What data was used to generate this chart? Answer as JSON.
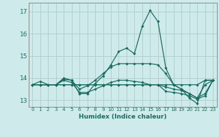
{
  "xlabel": "Humidex (Indice chaleur)",
  "bg_color": "#ceeaea",
  "grid_color": "#b0d0d0",
  "line_color": "#1a6b60",
  "xlim": [
    -0.5,
    23.5
  ],
  "ylim": [
    12.7,
    17.4
  ],
  "yticks": [
    13,
    14,
    15,
    16,
    17
  ],
  "xtick_labels": [
    "0",
    "1",
    "2",
    "3",
    "4",
    "5",
    "6",
    "7",
    "8",
    "9",
    "10",
    "11",
    "12",
    "13",
    "14",
    "15",
    "16",
    "17",
    "18",
    "19",
    "20",
    "21",
    "22",
    "23"
  ],
  "lines": [
    [
      13.7,
      13.85,
      13.7,
      13.7,
      13.95,
      13.9,
      13.3,
      13.3,
      13.75,
      14.1,
      14.6,
      15.2,
      15.35,
      15.1,
      16.35,
      17.05,
      16.55,
      14.45,
      13.7,
      13.5,
      13.1,
      12.85,
      13.9,
      13.9
    ],
    [
      13.7,
      13.7,
      13.7,
      13.7,
      13.7,
      13.7,
      13.7,
      13.7,
      13.7,
      13.7,
      13.7,
      13.7,
      13.7,
      13.7,
      13.7,
      13.7,
      13.7,
      13.7,
      13.7,
      13.7,
      13.7,
      13.7,
      13.9,
      13.9
    ],
    [
      13.7,
      13.7,
      13.7,
      13.7,
      14.0,
      13.9,
      13.5,
      13.65,
      13.9,
      14.2,
      14.5,
      14.65,
      14.65,
      14.65,
      14.65,
      14.65,
      14.6,
      14.2,
      13.7,
      13.5,
      13.3,
      13.1,
      13.7,
      13.9
    ],
    [
      13.7,
      13.7,
      13.7,
      13.7,
      13.9,
      13.8,
      13.35,
      13.35,
      13.5,
      13.65,
      13.8,
      13.9,
      13.9,
      13.85,
      13.8,
      13.7,
      13.7,
      13.6,
      13.5,
      13.45,
      13.3,
      13.1,
      13.3,
      13.9
    ],
    [
      13.7,
      13.7,
      13.7,
      13.7,
      13.7,
      13.7,
      13.7,
      13.7,
      13.7,
      13.7,
      13.7,
      13.7,
      13.7,
      13.7,
      13.7,
      13.7,
      13.7,
      13.4,
      13.35,
      13.3,
      13.2,
      13.05,
      13.2,
      13.9
    ]
  ]
}
